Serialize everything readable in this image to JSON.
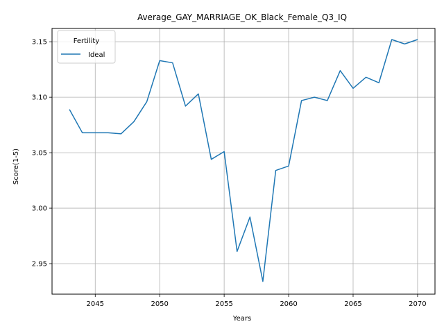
{
  "chart_data": {
    "type": "line",
    "title": "Average_GAY_MARRIAGE_OK_Black_Female_Q3_IQ",
    "xlabel": "Years",
    "ylabel": "Score(1-5)",
    "xlim": [
      2041.65,
      2071.35
    ],
    "ylim": [
      2.9225,
      3.162
    ],
    "xticks": [
      2045,
      2050,
      2055,
      2060,
      2065,
      2070
    ],
    "xtick_labels": [
      "2045",
      "2050",
      "2055",
      "2060",
      "2065",
      "2070"
    ],
    "yticks": [
      2.95,
      3.0,
      3.05,
      3.1,
      3.15
    ],
    "ytick_labels": [
      "2.95",
      "3.00",
      "3.05",
      "3.10",
      "3.15"
    ],
    "grid": true,
    "legend": {
      "title": "Fertility",
      "position": "top-left"
    },
    "series": [
      {
        "name": "Ideal",
        "color": "#1f77b4",
        "x": [
          2043,
          2044,
          2045,
          2046,
          2047,
          2048,
          2049,
          2050,
          2051,
          2052,
          2053,
          2054,
          2055,
          2056,
          2057,
          2058,
          2059,
          2060,
          2061,
          2062,
          2063,
          2064,
          2065,
          2066,
          2067,
          2068,
          2069,
          2070
        ],
        "y": [
          3.089,
          3.068,
          3.068,
          3.068,
          3.067,
          3.078,
          3.096,
          3.133,
          3.131,
          3.092,
          3.103,
          3.044,
          3.051,
          2.961,
          2.992,
          2.934,
          3.034,
          3.038,
          3.097,
          3.1,
          3.097,
          3.124,
          3.108,
          3.118,
          3.113,
          3.152,
          3.148,
          3.152
        ]
      }
    ]
  }
}
